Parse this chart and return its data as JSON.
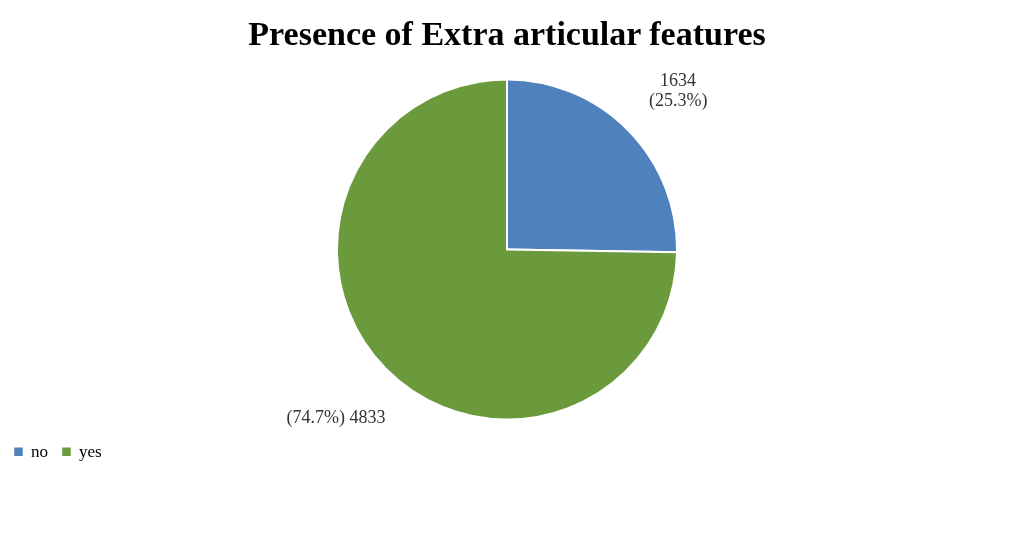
{
  "chart_data": {
    "type": "pie",
    "title": "Presence of Extra articular features",
    "categories": [
      "no",
      "yes"
    ],
    "values": [
      1634,
      4833
    ],
    "colors": [
      "#4f81bd",
      "#6b9a3c"
    ],
    "value_labels": [
      "1634\n(25.3%)",
      "(74.7%) 4833"
    ],
    "legend": "bottom"
  }
}
